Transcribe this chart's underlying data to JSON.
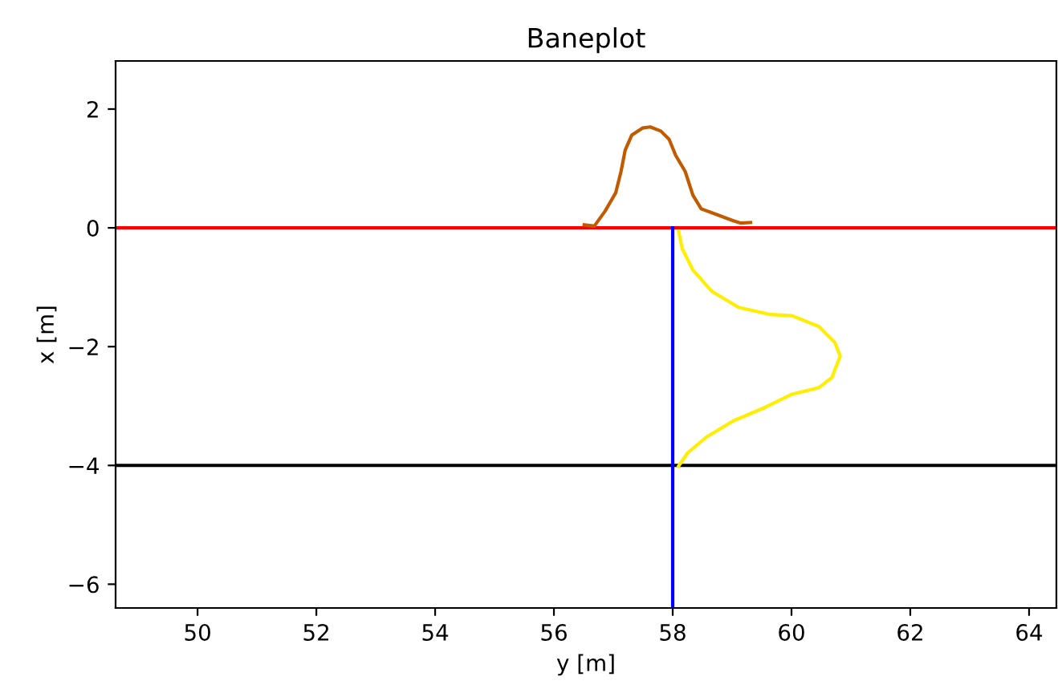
{
  "chart_data": {
    "type": "line",
    "title": "Baneplot",
    "xlabel": "y [m]",
    "ylabel": "x [m]",
    "xlim": [
      48.62,
      64.46
    ],
    "ylim": [
      -6.4,
      2.81
    ],
    "xticks": [
      50,
      52,
      54,
      56,
      58,
      60,
      62,
      64
    ],
    "yticks": [
      {
        "value": -6,
        "label": "−6"
      },
      {
        "value": -4,
        "label": "−4"
      },
      {
        "value": -2,
        "label": "−2"
      },
      0,
      2
    ],
    "grid": false,
    "marker": "none",
    "line_style": "solid",
    "ref_lines": [
      {
        "axis": "y",
        "value": 0,
        "color": "#ff0000"
      },
      {
        "axis": "y",
        "value": -4,
        "color": "#000000"
      }
    ],
    "series": [
      {
        "color": "#0000ff",
        "x": [
          58,
          58
        ],
        "values": [
          0,
          -6.4
        ]
      },
      {
        "color": "#c25a00",
        "x": [
          56.51,
          56.68,
          56.86,
          57.04,
          57.13,
          57.2,
          57.31,
          57.49,
          57.62,
          57.8,
          57.94,
          58.05,
          58.21,
          58.34,
          58.48,
          58.75,
          59.02,
          59.15,
          59.31
        ],
        "values": [
          0.05,
          0.03,
          0.28,
          0.59,
          0.95,
          1.31,
          1.56,
          1.68,
          1.7,
          1.63,
          1.49,
          1.22,
          0.95,
          0.55,
          0.32,
          0.22,
          0.12,
          0.08,
          0.09
        ]
      },
      {
        "color": "#ffee00",
        "x": [
          58.1,
          58.16,
          58.34,
          58.66,
          59.11,
          59.65,
          60.01,
          60.46,
          60.73,
          60.82,
          60.68,
          60.46,
          60.01,
          59.56,
          59.02,
          58.57,
          58.25,
          58.1
        ],
        "values": [
          -0.06,
          -0.35,
          -0.71,
          -1.07,
          -1.34,
          -1.46,
          -1.48,
          -1.66,
          -1.93,
          -2.16,
          -2.52,
          -2.69,
          -2.8,
          -3.02,
          -3.25,
          -3.52,
          -3.79,
          -4.01
        ]
      }
    ]
  }
}
